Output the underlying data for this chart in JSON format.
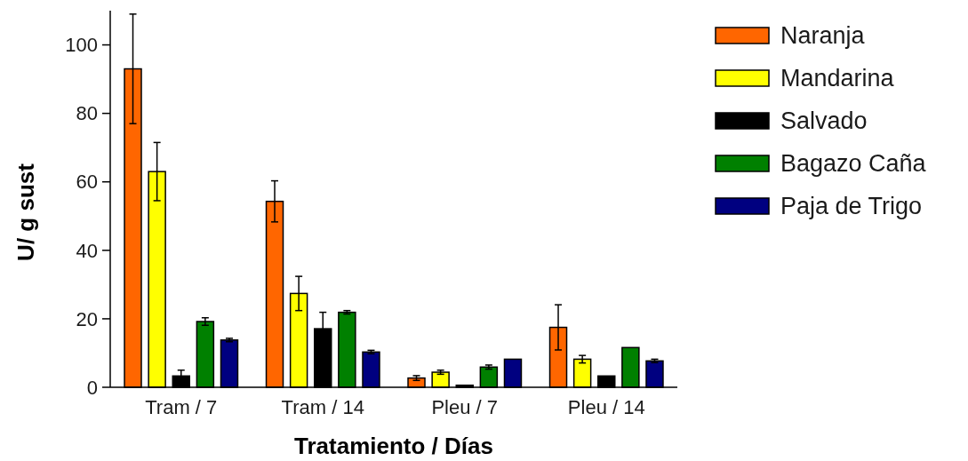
{
  "chart_data": {
    "type": "bar",
    "xlabel": "Tratamiento / Días",
    "ylabel": "U/ g sust",
    "categories": [
      "Tram / 7",
      "Tram / 14",
      "Pleu / 7",
      "Pleu / 14"
    ],
    "series": [
      {
        "name": "Naranja",
        "color": "#ff6600",
        "values": [
          93,
          54.3,
          2.7,
          17.5
        ],
        "errors": [
          16,
          6,
          0.7,
          6.6
        ]
      },
      {
        "name": "Mandarina",
        "color": "#ffff00",
        "values": [
          63,
          27.4,
          4.4,
          8.2
        ],
        "errors": [
          8.5,
          5,
          0.6,
          1.1
        ]
      },
      {
        "name": "Salvado",
        "color": "#000000",
        "values": [
          3.3,
          17.1,
          0.6,
          3.3
        ],
        "errors": [
          1.7,
          4.8,
          null,
          null
        ]
      },
      {
        "name": "Bagazo Caña",
        "color": "#008000",
        "values": [
          19.2,
          21.9,
          5.9,
          11.6
        ],
        "errors": [
          1.1,
          0.5,
          0.6,
          null
        ]
      },
      {
        "name": "Paja de Trigo",
        "color": "#000080",
        "values": [
          13.8,
          10.3,
          8.2,
          7.7
        ],
        "errors": [
          0.5,
          0.5,
          null,
          0.5
        ]
      }
    ],
    "ylim": [
      0,
      110
    ],
    "yticks": [
      0,
      20,
      40,
      60,
      80,
      100
    ],
    "grid": false,
    "legend": "top right"
  }
}
